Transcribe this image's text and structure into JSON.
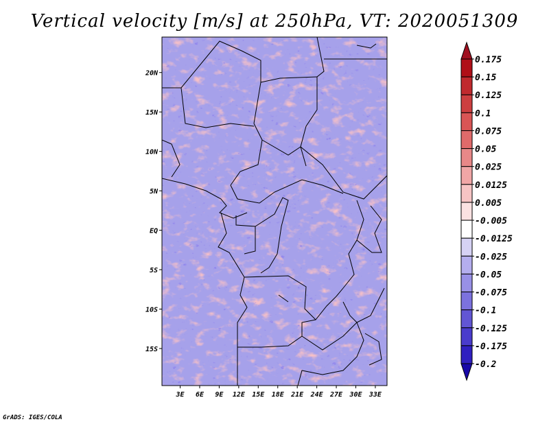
{
  "title": "Vertical velocity [m/s] at 250hPa, VT: 2020051309",
  "credit": "GrADS: IGES/COLA",
  "map": {
    "lat_labels": [
      "20N",
      "15N",
      "10N",
      "5N",
      "EQ",
      "5S",
      "10S",
      "15S"
    ],
    "lat_values": [
      20,
      15,
      10,
      5,
      0,
      -5,
      -10,
      -15
    ],
    "lon_labels": [
      "3E",
      "6E",
      "9E",
      "12E",
      "15E",
      "18E",
      "21E",
      "24E",
      "27E",
      "30E",
      "33E"
    ],
    "lon_values": [
      3,
      6,
      9,
      12,
      15,
      18,
      21,
      24,
      27,
      30,
      33
    ],
    "lat_range": [
      -19.7,
      24.5
    ],
    "lon_range": [
      0.2,
      34.8
    ]
  },
  "colorbar": {
    "labels": [
      "0.175",
      "0.15",
      "0.125",
      "0.1",
      "0.075",
      "0.05",
      "0.025",
      "0.0125",
      "0.005",
      "-0.005",
      "-0.0125",
      "-0.025",
      "-0.05",
      "-0.075",
      "-0.1",
      "-0.125",
      "-0.175",
      "-0.2"
    ],
    "colors": [
      "#b01018",
      "#c02a2e",
      "#cc3f40",
      "#d95555",
      "#e06a6a",
      "#e88888",
      "#f0a6a6",
      "#f6c4c4",
      "#fbe2e2",
      "#ffffff",
      "#d6d2f4",
      "#b4aeee",
      "#9890e6",
      "#7c72de",
      "#6256d4",
      "#4a3ccc",
      "#3020c0",
      "#1808a8"
    ],
    "top_arrow_color": "#a01020",
    "bottom_arrow_color": "#1808a8"
  }
}
